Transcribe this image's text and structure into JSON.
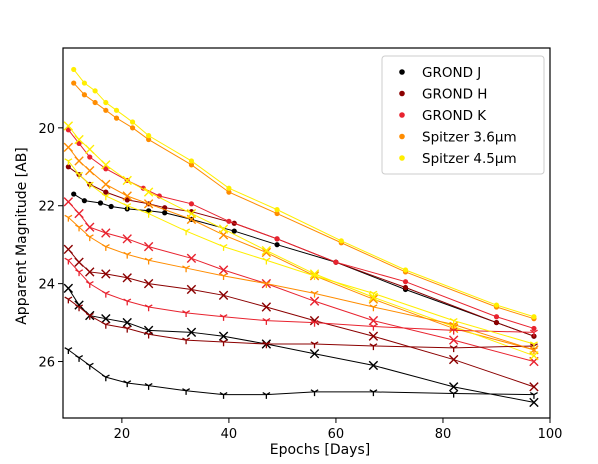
{
  "chart_data": {
    "type": "scatter",
    "xlabel": "Epochs [Days]",
    "ylabel": "Apparent Magnitude [AB]",
    "xlim": [
      9,
      100
    ],
    "ylim": [
      27.45,
      17.95
    ],
    "y_inverted": true,
    "x_ticks": [
      20,
      40,
      60,
      80,
      100
    ],
    "y_ticks": [
      20,
      22,
      24,
      26
    ],
    "grid": false,
    "legend_position": "top-right",
    "legend": [
      {
        "name": "GROND J",
        "color": "#000000"
      },
      {
        "name": "GROND H",
        "color": "#8b0000"
      },
      {
        "name": "GROND K",
        "color": "#e8232f"
      },
      {
        "name": "Spitzer 3.6μm",
        "color": "#ff8c00"
      },
      {
        "name": "Spitzer 4.5μm",
        "color": "#ffee00"
      }
    ],
    "series": [
      {
        "color": "#000000",
        "marker": "dot",
        "x": [
          11,
          13,
          16,
          18,
          21,
          25,
          28,
          33,
          41,
          49,
          60,
          73,
          90,
          97
        ],
        "y": [
          21.7,
          21.87,
          21.93,
          22.02,
          22.08,
          22.13,
          22.18,
          22.35,
          22.65,
          23.0,
          23.45,
          24.15,
          25.0,
          25.35
        ]
      },
      {
        "color": "#8b0000",
        "marker": "dot",
        "x": [
          10,
          12,
          14,
          17,
          21,
          25,
          28,
          33,
          41,
          49,
          60,
          73,
          90,
          97
        ],
        "y": [
          21.0,
          21.2,
          21.45,
          21.65,
          21.85,
          21.95,
          22.05,
          22.15,
          22.45,
          22.85,
          23.45,
          24.1,
          25.0,
          25.35
        ]
      },
      {
        "color": "#e8232f",
        "marker": "dot",
        "x": [
          10,
          12,
          14,
          17,
          21,
          24,
          27,
          33,
          40,
          49,
          60,
          73,
          90,
          97
        ],
        "y": [
          20.05,
          20.4,
          20.75,
          21.05,
          21.35,
          21.55,
          21.75,
          21.95,
          22.4,
          22.85,
          23.45,
          23.95,
          24.85,
          25.15
        ]
      },
      {
        "color": "#ff8c00",
        "marker": "dot",
        "x": [
          11,
          13,
          15,
          17,
          19,
          22,
          25,
          33,
          40,
          49,
          61,
          73,
          90,
          97
        ],
        "y": [
          18.85,
          19.15,
          19.35,
          19.55,
          19.75,
          20.0,
          20.3,
          20.95,
          21.65,
          22.2,
          22.95,
          23.7,
          24.6,
          24.9
        ]
      },
      {
        "color": "#ffee00",
        "marker": "dot",
        "x": [
          11,
          13,
          15,
          17,
          19,
          22,
          25,
          33,
          40,
          49,
          61,
          73,
          90,
          97
        ],
        "y": [
          18.5,
          18.85,
          19.05,
          19.35,
          19.55,
          19.85,
          20.2,
          20.85,
          21.55,
          22.1,
          22.9,
          23.65,
          24.55,
          24.85
        ]
      },
      {
        "color": "#000000",
        "marker": "x",
        "x": [
          10,
          12,
          14,
          17,
          21,
          25,
          33,
          39,
          47,
          56,
          67,
          82,
          97
        ],
        "y": [
          24.12,
          24.55,
          24.82,
          24.9,
          25.0,
          25.2,
          25.25,
          25.35,
          25.55,
          25.8,
          26.1,
          26.65,
          27.05
        ]
      },
      {
        "color": "#8b0000",
        "marker": "x",
        "x": [
          10,
          12,
          14,
          17,
          21,
          25,
          33,
          39,
          47,
          56,
          67,
          82,
          97
        ],
        "y": [
          23.12,
          23.45,
          23.7,
          23.75,
          23.85,
          24.0,
          24.15,
          24.3,
          24.6,
          24.95,
          25.35,
          25.95,
          26.65
        ]
      },
      {
        "color": "#e8232f",
        "marker": "x",
        "x": [
          10,
          12,
          14,
          17,
          21,
          25,
          33,
          39,
          47,
          56,
          67,
          82,
          97
        ],
        "y": [
          21.9,
          22.2,
          22.55,
          22.7,
          22.85,
          23.05,
          23.35,
          23.65,
          24.0,
          24.45,
          24.95,
          25.45,
          26.0
        ]
      },
      {
        "color": "#ff8c00",
        "marker": "x",
        "x": [
          10,
          12,
          14,
          17,
          21,
          25,
          33,
          39,
          47,
          56,
          67,
          82,
          97
        ],
        "y": [
          20.5,
          20.85,
          21.1,
          21.45,
          21.75,
          21.95,
          22.35,
          22.75,
          23.2,
          23.8,
          24.4,
          25.15,
          25.7
        ]
      },
      {
        "color": "#ffee00",
        "marker": "x",
        "x": [
          10,
          12,
          14,
          17,
          21,
          25,
          33,
          39,
          47,
          56,
          67,
          82,
          97
        ],
        "y": [
          19.95,
          20.3,
          20.55,
          20.95,
          21.35,
          21.65,
          22.2,
          22.6,
          23.15,
          23.75,
          24.35,
          25.1,
          25.85
        ]
      },
      {
        "color": "#000000",
        "marker": "tri",
        "x": [
          10,
          12,
          14,
          17,
          21,
          25,
          32,
          39,
          47,
          56,
          67,
          82,
          97
        ],
        "y": [
          25.7,
          25.9,
          26.1,
          26.4,
          26.55,
          26.62,
          26.75,
          26.85,
          26.85,
          26.78,
          26.78,
          26.82,
          26.85
        ]
      },
      {
        "color": "#8b0000",
        "marker": "tri",
        "x": [
          10,
          12,
          14,
          17,
          21,
          25,
          32,
          39,
          47,
          56,
          67,
          82,
          97
        ],
        "y": [
          24.4,
          24.6,
          24.82,
          25.05,
          25.15,
          25.3,
          25.45,
          25.5,
          25.55,
          25.55,
          25.6,
          25.65,
          25.6
        ]
      },
      {
        "color": "#e8232f",
        "marker": "tri",
        "x": [
          10,
          12,
          14,
          17,
          21,
          25,
          32,
          39,
          47,
          56,
          67,
          82,
          97
        ],
        "y": [
          23.4,
          23.7,
          24.0,
          24.25,
          24.45,
          24.6,
          24.75,
          24.85,
          24.95,
          25.0,
          25.1,
          25.2,
          25.25
        ]
      },
      {
        "color": "#ff8c00",
        "marker": "tri",
        "x": [
          10,
          12,
          14,
          17,
          21,
          25,
          32,
          39,
          47,
          56,
          67,
          82,
          97
        ],
        "y": [
          22.3,
          22.55,
          22.8,
          23.05,
          23.25,
          23.4,
          23.6,
          23.8,
          24.0,
          24.25,
          24.6,
          25.05,
          25.7
        ]
      },
      {
        "color": "#ffee00",
        "marker": "tri",
        "x": [
          10,
          12,
          14,
          17,
          21,
          25,
          32,
          39,
          47,
          56,
          67,
          82,
          97
        ],
        "y": [
          20.85,
          21.2,
          21.45,
          21.75,
          22.0,
          22.2,
          22.65,
          23.05,
          23.4,
          23.8,
          24.25,
          24.95,
          25.55
        ]
      }
    ]
  }
}
